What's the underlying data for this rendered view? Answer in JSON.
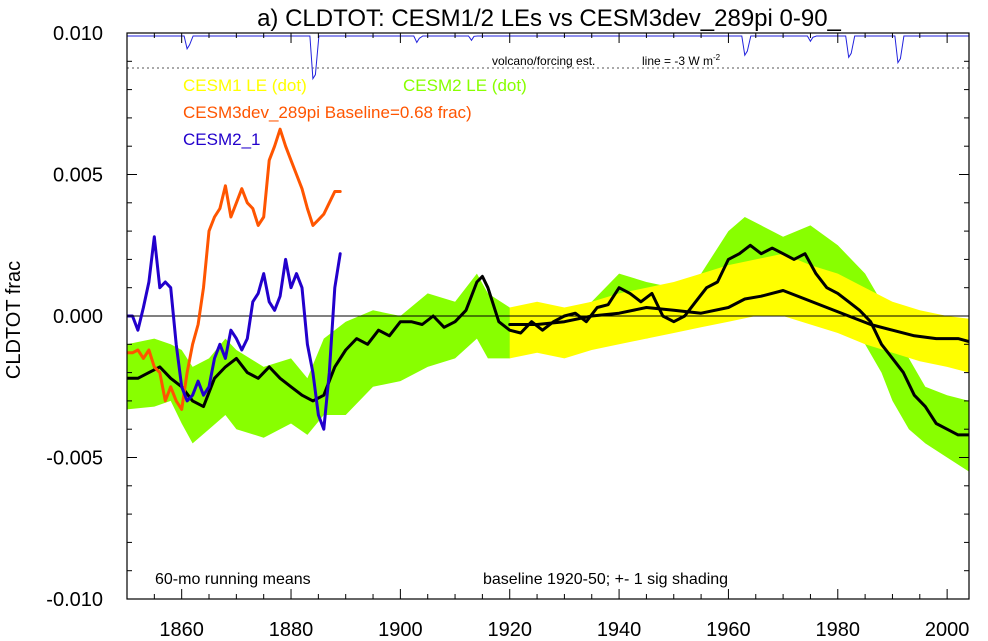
{
  "chart_data": {
    "type": "line",
    "title": "a) CLDTOT: CESM1/2 LEs vs CESM3dev_289pi 0-90_",
    "ylabel": "CLDTOT frac",
    "xlabel": "",
    "xlim": [
      1850,
      2004
    ],
    "ylim": [
      -0.01,
      0.01
    ],
    "x_ticks": [
      1860,
      1880,
      1900,
      1920,
      1940,
      1960,
      1980,
      2000
    ],
    "y_ticks": [
      -0.01,
      -0.005,
      0.0,
      0.005,
      0.01
    ],
    "y_tick_labels": [
      "-0.010",
      "-0.005",
      "0.000",
      "0.005",
      "0.010"
    ],
    "grid": false,
    "legend_placement": "top-left, inside plot",
    "legend": [
      {
        "label": "CESM1 LE (dot)",
        "color": "#ffff00"
      },
      {
        "label": "CESM2 LE (dot)",
        "color": "#88ff00"
      },
      {
        "label": "CESM3dev_289pi Baseline=0.68 frac)",
        "color": "#ff5500"
      },
      {
        "label": "CESM2_1",
        "color": "#2200cc"
      }
    ],
    "annotations": {
      "volcano_label": "volcano/forcing est.",
      "volcano_line_label": "line = -3 W m",
      "volcano_line_sup": "-2",
      "bottom_left": "60-mo running means",
      "bottom_right": "baseline 1920-50; +- 1 sig shading"
    },
    "bands": [
      {
        "name": "CESM2 LE",
        "color": "#88ff00",
        "x": [
          1850,
          1855,
          1858,
          1860,
          1862,
          1865,
          1868,
          1870,
          1875,
          1880,
          1883,
          1886,
          1890,
          1895,
          1900,
          1905,
          1910,
          1914,
          1916,
          1920,
          1925,
          1930,
          1935,
          1940,
          1945,
          1950,
          1955,
          1960,
          1963,
          1966,
          1970,
          1975,
          1980,
          1985,
          1988,
          1990,
          1993,
          1996,
          2000,
          2004
        ],
        "upper": [
          -0.001,
          -0.0008,
          -0.001,
          -0.0012,
          -0.0018,
          -0.0015,
          -0.0008,
          -0.0012,
          -0.0018,
          -0.0015,
          -0.0022,
          -0.0008,
          -0.0002,
          0.0002,
          0.0,
          0.0008,
          0.0005,
          0.0015,
          0.0008,
          0.0003,
          -0.0002,
          0.0002,
          0.0005,
          0.0015,
          0.0012,
          0.001,
          0.0015,
          0.003,
          0.0035,
          0.0032,
          0.0028,
          0.0032,
          0.0025,
          0.0015,
          0.0005,
          -0.0005,
          -0.0015,
          -0.0025,
          -0.0028,
          -0.003
        ],
        "lower": [
          -0.0033,
          -0.0032,
          -0.003,
          -0.0038,
          -0.0045,
          -0.004,
          -0.0035,
          -0.004,
          -0.0043,
          -0.0038,
          -0.0042,
          -0.0035,
          -0.0035,
          -0.0025,
          -0.0023,
          -0.0018,
          -0.0015,
          -0.0008,
          -0.0015,
          -0.0015,
          -0.001,
          -0.0012,
          -0.0008,
          -0.0005,
          -0.0008,
          -0.0005,
          -0.0003,
          0.001,
          0.0015,
          0.0012,
          0.0008,
          0.0005,
          0.0,
          -0.001,
          -0.002,
          -0.003,
          -0.004,
          -0.0045,
          -0.005,
          -0.0055
        ]
      },
      {
        "name": "CESM1 LE",
        "color": "#ffff00",
        "x": [
          1920,
          1925,
          1930,
          1935,
          1940,
          1945,
          1950,
          1955,
          1960,
          1965,
          1970,
          1975,
          1980,
          1985,
          1990,
          1995,
          2000,
          2004
        ],
        "upper": [
          0.0003,
          0.0005,
          0.0003,
          0.0005,
          0.0008,
          0.001,
          0.0012,
          0.0015,
          0.0018,
          0.002,
          0.0022,
          0.0018,
          0.0015,
          0.001,
          0.0005,
          0.0002,
          0.0,
          -0.0001
        ],
        "lower": [
          -0.0015,
          -0.0013,
          -0.0015,
          -0.0012,
          -0.001,
          -0.0008,
          -0.0006,
          -0.0004,
          -0.0002,
          0.0,
          0.0,
          -0.0003,
          -0.0006,
          -0.001,
          -0.0013,
          -0.0016,
          -0.0018,
          -0.002
        ]
      }
    ],
    "series": [
      {
        "name": "CESM2 LE mean",
        "color": "#000000",
        "x": [
          1850,
          1852,
          1854,
          1856,
          1858,
          1860,
          1862,
          1864,
          1866,
          1868,
          1870,
          1872,
          1874,
          1876,
          1878,
          1880,
          1882,
          1884,
          1886,
          1888,
          1890,
          1892,
          1894,
          1896,
          1898,
          1900,
          1902,
          1904,
          1906,
          1908,
          1910,
          1912,
          1914,
          1915,
          1916,
          1918,
          1920,
          1922,
          1924,
          1926,
          1928,
          1930,
          1932,
          1934,
          1936,
          1938,
          1940,
          1942,
          1944,
          1946,
          1948,
          1950,
          1952,
          1954,
          1956,
          1958,
          1960,
          1962,
          1964,
          1966,
          1968,
          1970,
          1972,
          1974,
          1976,
          1978,
          1980,
          1982,
          1984,
          1986,
          1988,
          1990,
          1992,
          1994,
          1996,
          1998,
          2000,
          2002,
          2004
        ],
        "values": [
          -0.0022,
          -0.0022,
          -0.002,
          -0.0018,
          -0.0022,
          -0.0025,
          -0.003,
          -0.0032,
          -0.0022,
          -0.0018,
          -0.0015,
          -0.002,
          -0.0022,
          -0.0018,
          -0.0022,
          -0.0025,
          -0.0028,
          -0.003,
          -0.0028,
          -0.0018,
          -0.0012,
          -0.0008,
          -0.001,
          -0.0005,
          -0.0007,
          -0.0002,
          -0.0002,
          -0.0003,
          0.0,
          -0.0004,
          -0.0002,
          0.0002,
          0.0012,
          0.0014,
          0.001,
          -0.0002,
          -0.0005,
          -0.0006,
          -0.0002,
          -0.0005,
          -0.0002,
          0.0,
          0.0001,
          -0.0002,
          0.0003,
          0.0004,
          0.001,
          0.0008,
          0.0005,
          0.0008,
          0.0,
          -0.0002,
          0.0,
          0.0005,
          0.001,
          0.0012,
          0.002,
          0.0022,
          0.0025,
          0.0022,
          0.0024,
          0.0022,
          0.002,
          0.0022,
          0.0015,
          0.001,
          0.0008,
          0.0005,
          0.0002,
          -0.0002,
          -0.001,
          -0.0015,
          -0.002,
          -0.0028,
          -0.0032,
          -0.0038,
          -0.004,
          -0.0042,
          -0.0042
        ]
      },
      {
        "name": "CESM1 LE mean",
        "color": "#000000",
        "x": [
          1920,
          1925,
          1930,
          1935,
          1940,
          1945,
          1950,
          1955,
          1960,
          1963,
          1966,
          1970,
          1974,
          1978,
          1982,
          1986,
          1990,
          1994,
          1998,
          2002,
          2004
        ],
        "values": [
          -0.0003,
          -0.0003,
          -0.0002,
          0.0,
          0.0001,
          0.0003,
          0.0002,
          0.0001,
          0.0003,
          0.0006,
          0.0007,
          0.0009,
          0.0006,
          0.0003,
          0.0,
          -0.0003,
          -0.0005,
          -0.0007,
          -0.0008,
          -0.0008,
          -0.0009
        ]
      },
      {
        "name": "CESM3dev_289pi",
        "color": "#ff5500",
        "x": [
          1850,
          1851,
          1852,
          1853,
          1854,
          1855,
          1856,
          1857,
          1858,
          1859,
          1860,
          1861,
          1862,
          1863,
          1864,
          1865,
          1866,
          1867,
          1868,
          1869,
          1870,
          1871,
          1872,
          1873,
          1874,
          1875,
          1876,
          1877,
          1878,
          1879,
          1880,
          1881,
          1882,
          1883,
          1884,
          1885,
          1886,
          1887,
          1888,
          1889
        ],
        "values": [
          -0.0013,
          -0.0013,
          -0.0012,
          -0.0015,
          -0.0012,
          -0.0018,
          -0.002,
          -0.003,
          -0.0025,
          -0.003,
          -0.0033,
          -0.002,
          -0.001,
          -0.0003,
          0.001,
          0.003,
          0.0035,
          0.0038,
          0.0046,
          0.0035,
          0.004,
          0.0045,
          0.004,
          0.0038,
          0.0032,
          0.0035,
          0.0055,
          0.006,
          0.0066,
          0.006,
          0.0055,
          0.005,
          0.0045,
          0.0038,
          0.0032,
          0.0034,
          0.0036,
          0.004,
          0.0044,
          0.0044
        ]
      },
      {
        "name": "CESM2_1",
        "color": "#2200cc",
        "x": [
          1850,
          1851,
          1852,
          1853,
          1854,
          1855,
          1856,
          1857,
          1858,
          1859,
          1860,
          1861,
          1862,
          1863,
          1864,
          1865,
          1866,
          1867,
          1868,
          1869,
          1870,
          1871,
          1872,
          1873,
          1874,
          1875,
          1876,
          1877,
          1878,
          1879,
          1880,
          1881,
          1882,
          1883,
          1884,
          1885,
          1886,
          1887,
          1888,
          1889
        ],
        "values": [
          0.0,
          0.0,
          -0.0005,
          0.0003,
          0.0012,
          0.0028,
          0.001,
          0.0012,
          0.001,
          -0.001,
          -0.0025,
          -0.003,
          -0.0028,
          -0.0023,
          -0.0028,
          -0.0025,
          -0.0015,
          -0.001,
          -0.0015,
          -0.0005,
          -0.0008,
          -0.0012,
          -0.0008,
          0.0005,
          0.0008,
          0.0015,
          0.0005,
          0.0002,
          0.0007,
          0.002,
          0.001,
          0.0015,
          0.001,
          -0.001,
          -0.002,
          -0.0035,
          -0.004,
          -0.002,
          0.001,
          0.0022
        ]
      }
    ],
    "volcano": {
      "name": "volcanic forcing",
      "color": "#2222dd",
      "units": "W m-2",
      "reference_line": -3,
      "events": [
        {
          "year": 1861,
          "value": -1.2
        },
        {
          "year": 1884,
          "value": -4.0
        },
        {
          "year": 1903,
          "value": -0.6
        },
        {
          "year": 1913,
          "value": -0.4
        },
        {
          "year": 1963,
          "value": -1.8
        },
        {
          "year": 1975,
          "value": -0.5
        },
        {
          "year": 1982,
          "value": -2.0
        },
        {
          "year": 1991,
          "value": -2.5
        }
      ]
    }
  }
}
